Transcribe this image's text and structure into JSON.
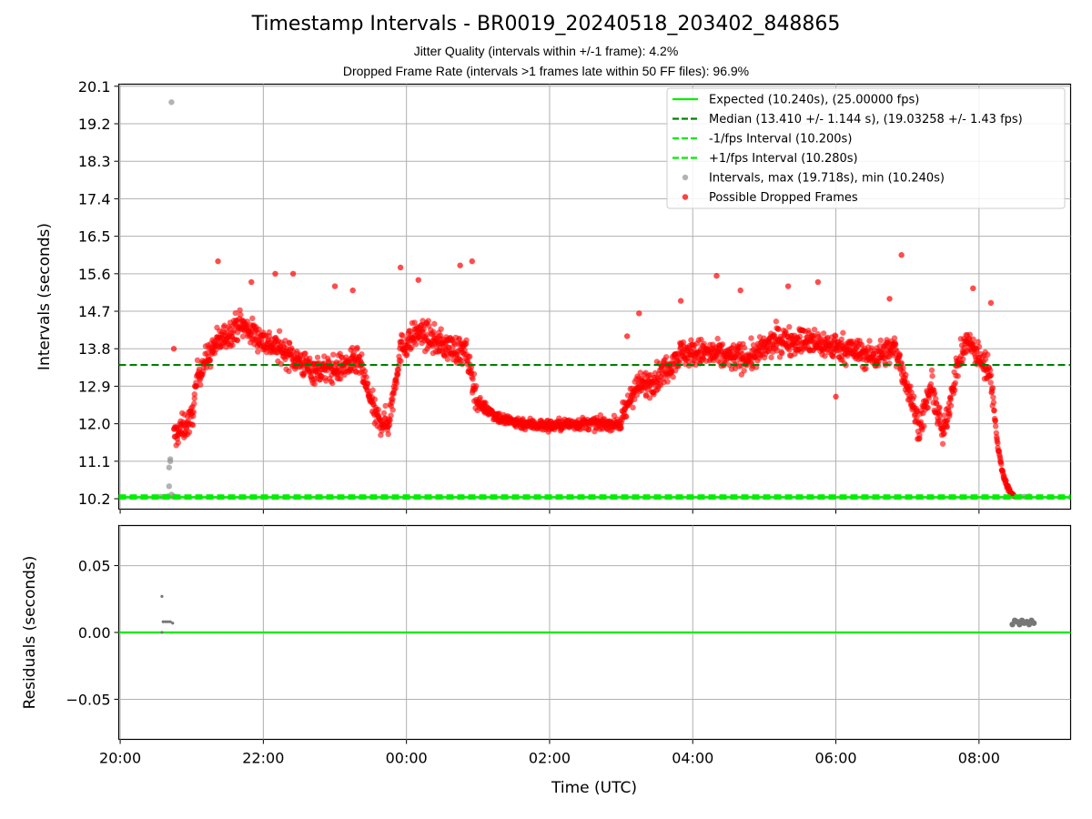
{
  "title": "Timestamp Intervals - BR0019_20240518_203402_848865",
  "subtitle_jitter": "Jitter Quality (intervals within +/-1 frame): 4.2%",
  "subtitle_dropped": "Dropped Frame Rate (intervals >1 frames late within 50 FF files): 96.9%",
  "colors": {
    "expected": "#00ee00",
    "median": "#008000",
    "bound": "#00ee00",
    "intervals": "#999999",
    "dropped": "#ff0000",
    "residuals": "#777777",
    "grid": "#b0b0b0"
  },
  "chart_data": [
    {
      "type": "scatter",
      "name": "intervals",
      "xlabel": "",
      "ylabel": "Intervals (seconds)",
      "ylim": [
        9.95,
        20.15
      ],
      "yticks": [
        "10.2",
        "11.1",
        "12.0",
        "12.9",
        "13.8",
        "14.7",
        "15.6",
        "16.5",
        "17.4",
        "18.3",
        "19.2",
        "20.1"
      ],
      "xlim_hours": [
        19.98,
        33.28
      ],
      "grid": true,
      "legend_position": "top-right",
      "lines": [
        {
          "name": "Expected (10.240s), (25.00000 fps)",
          "y": 10.24,
          "style": "solid"
        },
        {
          "name": "Median (13.410 +/- 1.144 s), (19.03258 +/- 1.43 fps)",
          "y": 13.41,
          "style": "dashed"
        },
        {
          "name": "-1/fps Interval (10.200s)",
          "y": 10.2,
          "style": "dashed"
        },
        {
          "name": "+1/fps Interval (10.280s)",
          "y": 10.28,
          "style": "dashed"
        }
      ],
      "series": [
        {
          "name": "Intervals, max (19.718s), min (10.240s)",
          "max": 19.718,
          "min": 10.24,
          "points": [
            [
              "20:34",
              10.25
            ],
            [
              "20:37",
              10.25
            ],
            [
              "20:40",
              10.26
            ],
            [
              "20:41",
              10.5
            ],
            [
              "20:41",
              10.95
            ],
            [
              "20:42",
              11.1
            ],
            [
              "20:42",
              11.15
            ],
            [
              "20:43",
              10.3
            ],
            [
              "20:43",
              19.718
            ],
            [
              "20:44",
              10.25
            ],
            [
              "20:45",
              10.26
            ],
            [
              "08:35",
              10.25
            ],
            [
              "08:38",
              10.25
            ],
            [
              "08:42",
              10.26
            ]
          ]
        },
        {
          "name": "Possible Dropped Frames",
          "trend": [
            [
              "20:45",
              11.7
            ],
            [
              "21:00",
              12.1
            ],
            [
              "21:05",
              13.2
            ],
            [
              "21:20",
              13.9
            ],
            [
              "21:40",
              14.4
            ],
            [
              "22:00",
              14.0
            ],
            [
              "22:20",
              13.7
            ],
            [
              "22:40",
              13.3
            ],
            [
              "23:00",
              13.3
            ],
            [
              "23:20",
              13.5
            ],
            [
              "23:35",
              12.1
            ],
            [
              "23:45",
              12.0
            ],
            [
              "23:55",
              13.8
            ],
            [
              "00:10",
              14.2
            ],
            [
              "00:30",
              13.9
            ],
            [
              "00:50",
              13.7
            ],
            [
              "01:00",
              12.5
            ],
            [
              "01:20",
              12.1
            ],
            [
              "01:40",
              12.0
            ],
            [
              "02:00",
              11.95
            ],
            [
              "02:20",
              12.0
            ],
            [
              "02:40",
              12.0
            ],
            [
              "03:00",
              12.0
            ],
            [
              "03:10",
              12.8
            ],
            [
              "03:30",
              13.1
            ],
            [
              "03:50",
              13.7
            ],
            [
              "04:10",
              13.7
            ],
            [
              "04:30",
              13.6
            ],
            [
              "04:50",
              13.6
            ],
            [
              "05:10",
              14.0
            ],
            [
              "05:30",
              14.0
            ],
            [
              "05:50",
              13.9
            ],
            [
              "06:10",
              13.8
            ],
            [
              "06:30",
              13.6
            ],
            [
              "06:50",
              13.8
            ],
            [
              "07:00",
              12.9
            ],
            [
              "07:10",
              11.9
            ],
            [
              "07:20",
              12.9
            ],
            [
              "07:30",
              11.7
            ],
            [
              "07:40",
              13.2
            ],
            [
              "07:50",
              14.0
            ],
            [
              "08:00",
              13.6
            ],
            [
              "08:10",
              13.2
            ],
            [
              "08:15",
              11.6
            ],
            [
              "08:20",
              10.8
            ],
            [
              "08:25",
              10.4
            ],
            [
              "08:30",
              10.25
            ]
          ],
          "extremes": [
            [
              "21:22",
              15.9
            ],
            [
              "21:50",
              15.4
            ],
            [
              "22:10",
              15.6
            ],
            [
              "22:25",
              15.6
            ],
            [
              "23:00",
              15.3
            ],
            [
              "23:15",
              15.2
            ],
            [
              "23:55",
              15.75
            ],
            [
              "00:10",
              15.45
            ],
            [
              "00:45",
              15.8
            ],
            [
              "00:55",
              15.9
            ],
            [
              "03:50",
              14.95
            ],
            [
              "04:20",
              15.55
            ],
            [
              "04:40",
              15.2
            ],
            [
              "05:20",
              15.3
            ],
            [
              "05:45",
              15.4
            ],
            [
              "06:45",
              15.0
            ],
            [
              "06:55",
              16.05
            ],
            [
              "07:55",
              15.25
            ],
            [
              "08:10",
              14.9
            ],
            [
              "06:00",
              12.65
            ],
            [
              "20:45",
              13.8
            ],
            [
              "03:05",
              14.1
            ],
            [
              "03:15",
              14.65
            ]
          ]
        }
      ],
      "legend": [
        "Expected (10.240s), (25.00000 fps)",
        "Median (13.410 +/- 1.144 s), (19.03258 +/- 1.43 fps)",
        "-1/fps Interval (10.200s)",
        "+1/fps Interval (10.280s)",
        "Intervals, max (19.718s), min (10.240s)",
        "Possible Dropped Frames"
      ]
    },
    {
      "type": "scatter",
      "name": "residuals",
      "xlabel": "Time (UTC)",
      "ylabel": "Residuals (seconds)",
      "ylim": [
        -0.08,
        0.08
      ],
      "yticks": [
        "0.05",
        "0.00",
        "−0.05"
      ],
      "xticks": [
        "20:00",
        "22:00",
        "00:00",
        "02:00",
        "04:00",
        "06:00",
        "08:00"
      ],
      "grid": true,
      "zero_line": 0.0,
      "points": [
        [
          "20:35",
          0.027
        ],
        [
          "20:35",
          0.0
        ],
        [
          "20:36",
          0.008
        ],
        [
          "20:38",
          0.008
        ],
        [
          "20:40",
          0.008
        ],
        [
          "20:42",
          0.008
        ],
        [
          "20:44",
          0.007
        ],
        [
          "08:28",
          0.006
        ],
        [
          "08:30",
          0.009
        ],
        [
          "08:32",
          0.008
        ],
        [
          "08:34",
          0.006
        ],
        [
          "08:36",
          0.009
        ],
        [
          "08:38",
          0.007
        ],
        [
          "08:40",
          0.008
        ],
        [
          "08:42",
          0.006
        ],
        [
          "08:44",
          0.009
        ],
        [
          "08:46",
          0.007
        ]
      ]
    }
  ]
}
